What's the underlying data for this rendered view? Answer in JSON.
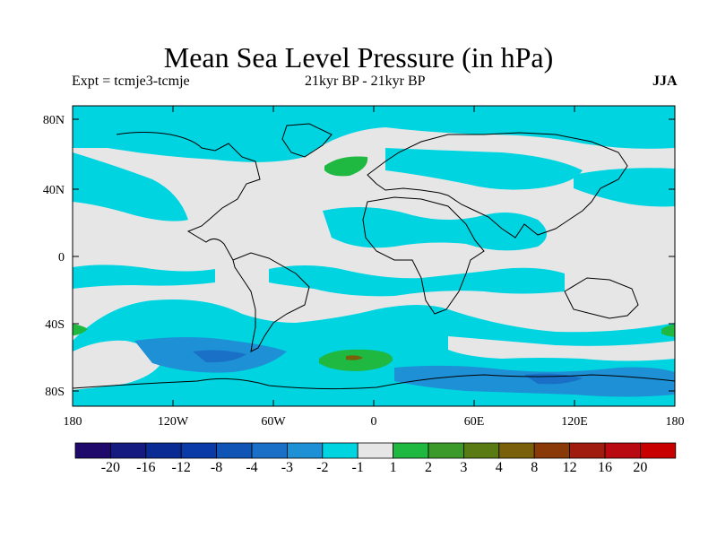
{
  "title": "Mean Sea Level Pressure (in hPa)",
  "expt": "Expt = tcmje3-tcmje",
  "period": "21kyr BP - 21kyr BP",
  "season": "JJA",
  "axes": {
    "lat_ticks": [
      "80N",
      "40N",
      "0",
      "40S",
      "80S"
    ],
    "lon_ticks": [
      "180",
      "120W",
      "60W",
      "0",
      "60E",
      "120E",
      "180"
    ]
  },
  "colorbar": {
    "labels": [
      "-20",
      "-16",
      "-12",
      "-8",
      "-4",
      "-3",
      "-2",
      "-1",
      "1",
      "2",
      "3",
      "4",
      "8",
      "12",
      "16",
      "20"
    ],
    "colors": [
      "#1f0a6b",
      "#141a80",
      "#0a2a94",
      "#0a3aa8",
      "#1054b5",
      "#1a70c6",
      "#1e90d6",
      "#00d4e0",
      "#e6e6e6",
      "#1fb840",
      "#3c9a2a",
      "#5a7a14",
      "#7a600a",
      "#8a3a08",
      "#a01c0e",
      "#b80a10",
      "#c80000"
    ]
  },
  "legend_colors": {
    "neutral": "#e6e6e6",
    "neg_light": "#00d4e0",
    "neg_mid": "#1e90d6",
    "neg_dark": "#1a70c6",
    "pos_light": "#1fb840",
    "pos_mid": "#3c9a2a",
    "pos_brown": "#7a600a"
  }
}
